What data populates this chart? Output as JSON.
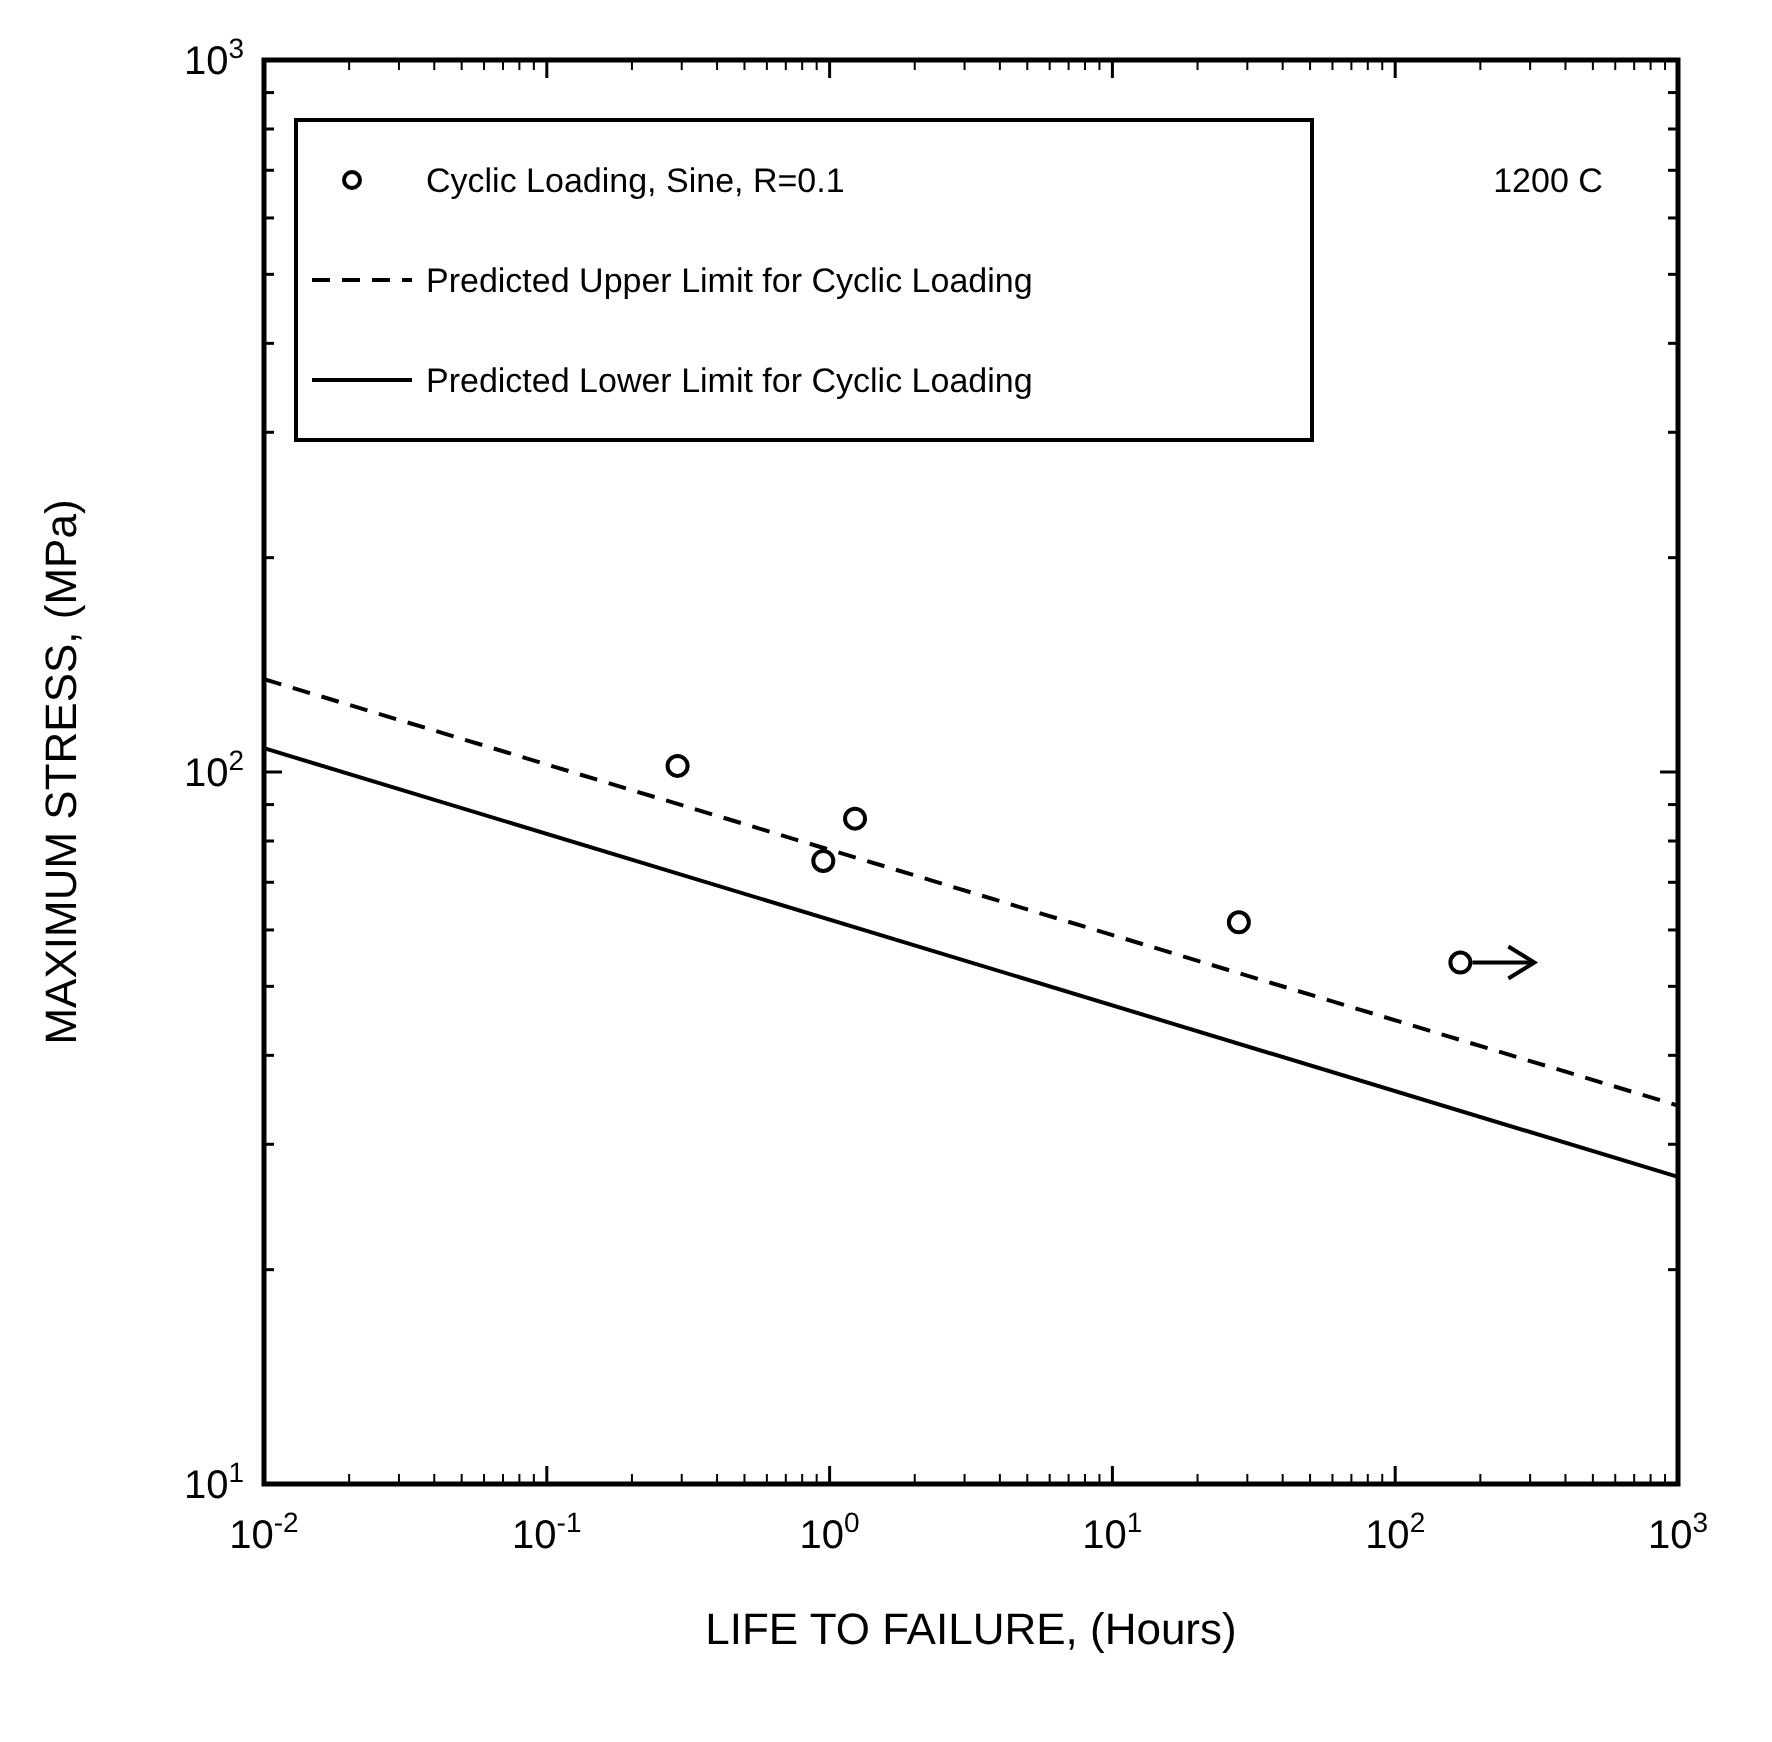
{
  "chart_data": {
    "type": "scatter",
    "xlabel": "LIFE TO FAILURE, (Hours)",
    "ylabel": "MAXIMUM STRESS, (MPa)",
    "log": "xy",
    "xlim": [
      0.01,
      1000
    ],
    "ylim": [
      10,
      1000
    ],
    "xticks": [
      {
        "value": 0.01,
        "label": "10$^{-2}$"
      },
      {
        "value": 0.1,
        "label": "10$^{-1}$"
      },
      {
        "value": 1,
        "label": "10$^{0}$"
      },
      {
        "value": 10,
        "label": "10$^{1}$"
      },
      {
        "value": 100,
        "label": "10$^{2}$"
      },
      {
        "value": 1000,
        "label": "10$^{3}$"
      }
    ],
    "yticks": [
      {
        "value": 10,
        "label": "10$^{1}$"
      },
      {
        "value": 20,
        "label": null
      },
      {
        "value": 30,
        "label": null
      },
      {
        "value": 40,
        "label": null
      },
      {
        "value": 50,
        "label": null
      },
      {
        "value": 60,
        "label": null
      },
      {
        "value": 70,
        "label": null
      },
      {
        "value": 80,
        "label": null
      },
      {
        "value": 90,
        "label": null
      },
      {
        "value": 100,
        "label": "10$^{2}$"
      },
      {
        "value": 200,
        "label": null
      },
      {
        "value": 300,
        "label": null
      },
      {
        "value": 400,
        "label": null
      },
      {
        "value": 500,
        "label": null
      },
      {
        "value": 600,
        "label": null
      },
      {
        "value": 700,
        "label": null
      },
      {
        "value": 800,
        "label": null
      },
      {
        "value": 900,
        "label": null
      },
      {
        "value": 1000,
        "label": "10$^{3}$"
      }
    ],
    "grid": false,
    "legend": "top left",
    "annotations": [
      "1200 C"
    ],
    "series": [
      {
        "name": "Cyclic Loading, Sine, R=0.1",
        "marker": "circle",
        "color": "#000000",
        "x": [
          0.29,
          0.95,
          1.23,
          28,
          170
        ],
        "values": [
          102,
          75,
          86,
          61.5,
          54
        ]
      },
      {
        "name": "Predicted Upper Limit for Cyclic Loading",
        "type": "line",
        "line_style": "dashed",
        "marker": "none",
        "color": "#000000",
        "x": [
          0.01,
          1000
        ],
        "values": [
          135,
          34
        ]
      },
      {
        "name": "Predicted Lower Limit for Cyclic Loading",
        "type": "line",
        "line_style": "solid",
        "marker": "none",
        "color": "#000000",
        "x": [
          0.01,
          1000
        ],
        "values": [
          108,
          27
        ]
      }
    ]
  }
}
